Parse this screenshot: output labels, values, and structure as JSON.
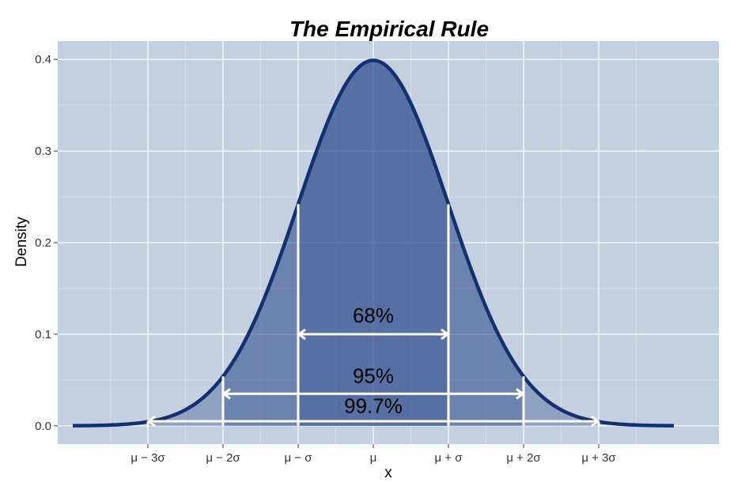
{
  "chart_data": {
    "type": "area",
    "title": "The Empirical Rule",
    "xlabel": "x",
    "ylabel": "Density",
    "distribution": "normal",
    "mean": 0,
    "sd": 1,
    "xlim": [
      -4.2,
      4.6
    ],
    "ylim": [
      -0.02,
      0.42
    ],
    "curve_range": [
      -4,
      4
    ],
    "y_ticks": [
      0.0,
      0.1,
      0.2,
      0.3,
      0.4
    ],
    "y_tick_labels": [
      "0.0",
      "0.1",
      "0.2",
      "0.3",
      "0.4"
    ],
    "x_ticks": [
      -3,
      -2,
      -1,
      0,
      1,
      2,
      3
    ],
    "x_tick_labels": [
      "μ − 3σ",
      "μ − 2σ",
      "μ − σ",
      "μ",
      "μ + σ",
      "μ + 2σ",
      "μ + 3σ"
    ],
    "grid": true,
    "intervals": [
      {
        "label": "68%",
        "from": -1,
        "to": 1,
        "arrow_y": 0.1,
        "label_y": 0.113
      },
      {
        "label": "95%",
        "from": -2,
        "to": 2,
        "arrow_y": 0.035,
        "label_y": 0.047
      },
      {
        "label": "99.7%",
        "from": -3,
        "to": 3,
        "arrow_y": 0.005,
        "label_y": 0.014
      }
    ],
    "colors": {
      "panel": "#c3d0df",
      "grid": "#ffffff",
      "curve": "#14306e",
      "fill": "#2d4b8c",
      "annotation": "#ffffff"
    }
  }
}
